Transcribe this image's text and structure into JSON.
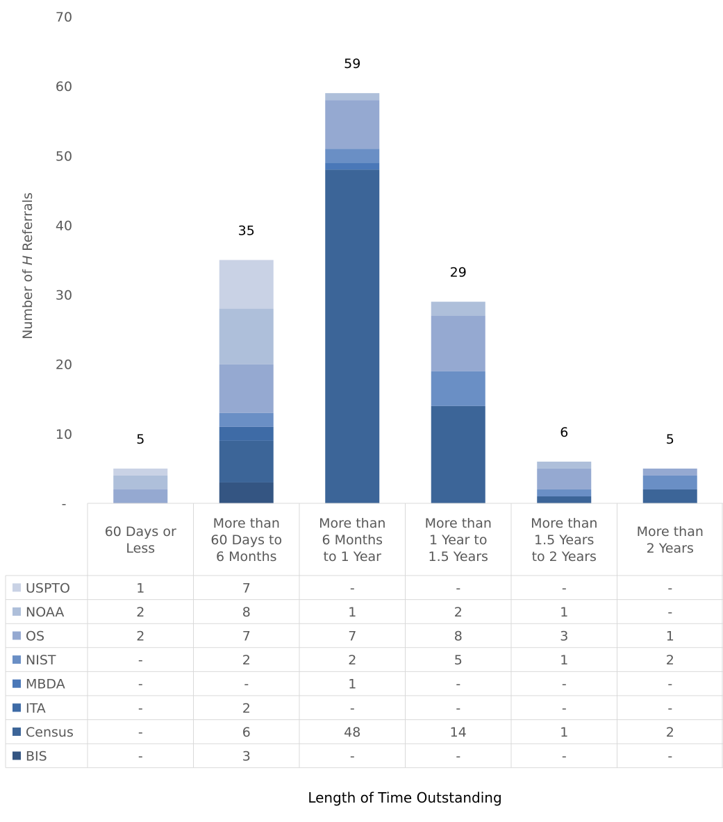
{
  "chart_data": {
    "type": "bar",
    "stacked": true,
    "ylabel_prefix": "Number of ",
    "ylabel_italic": "H",
    "ylabel_suffix": " Referrals",
    "xlabel": "Length of Time Outstanding",
    "ylim": [
      0,
      70
    ],
    "yticks": [
      {
        "value": 0,
        "label": "-"
      },
      {
        "value": 10,
        "label": "10"
      },
      {
        "value": 20,
        "label": "20"
      },
      {
        "value": 30,
        "label": "30"
      },
      {
        "value": 40,
        "label": "40"
      },
      {
        "value": 50,
        "label": "50"
      },
      {
        "value": 60,
        "label": "60"
      },
      {
        "value": 70,
        "label": "70"
      }
    ],
    "categories": [
      [
        "60 Days or",
        "Less"
      ],
      [
        "More than",
        "60 Days to",
        "6 Months"
      ],
      [
        "More than",
        "6 Months",
        "to 1 Year"
      ],
      [
        "More than",
        "1 Year to",
        "1.5 Years"
      ],
      [
        "More than",
        "1.5 Years",
        "to 2 Years"
      ],
      [
        "More than",
        "2 Years"
      ]
    ],
    "totals": [
      5,
      35,
      59,
      29,
      6,
      5
    ],
    "legend_position": "data-table",
    "series": [
      {
        "name": "USPTO",
        "color": "#c9d2e5",
        "values": [
          1,
          7,
          0,
          0,
          0,
          0
        ],
        "labels": [
          "1",
          "7",
          "-",
          "-",
          "-",
          "-"
        ]
      },
      {
        "name": "NOAA",
        "color": "#aebfda",
        "values": [
          2,
          8,
          1,
          2,
          1,
          0
        ],
        "labels": [
          "2",
          "8",
          "1",
          "2",
          "1",
          "-"
        ]
      },
      {
        "name": "OS",
        "color": "#95a9d1",
        "values": [
          2,
          7,
          7,
          8,
          3,
          1
        ],
        "labels": [
          "2",
          "7",
          "7",
          "8",
          "3",
          "1"
        ]
      },
      {
        "name": "NIST",
        "color": "#6a8fc5",
        "values": [
          0,
          2,
          2,
          5,
          1,
          2
        ],
        "labels": [
          "-",
          "2",
          "2",
          "5",
          "1",
          "2"
        ]
      },
      {
        "name": "MBDA",
        "color": "#4a78b8",
        "values": [
          0,
          0,
          1,
          0,
          0,
          0
        ],
        "labels": [
          "-",
          "-",
          "1",
          "-",
          "-",
          "-"
        ]
      },
      {
        "name": "ITA",
        "color": "#3e6ba6",
        "values": [
          0,
          2,
          0,
          0,
          0,
          0
        ],
        "labels": [
          "-",
          "2",
          "-",
          "-",
          "-",
          "-"
        ]
      },
      {
        "name": "Census",
        "color": "#3c6598",
        "values": [
          0,
          6,
          48,
          14,
          1,
          2
        ],
        "labels": [
          "-",
          "6",
          "48",
          "14",
          "1",
          "2"
        ]
      },
      {
        "name": "BIS",
        "color": "#345582",
        "values": [
          0,
          3,
          0,
          0,
          0,
          0
        ],
        "labels": [
          "-",
          "3",
          "-",
          "-",
          "-",
          "-"
        ]
      }
    ]
  }
}
